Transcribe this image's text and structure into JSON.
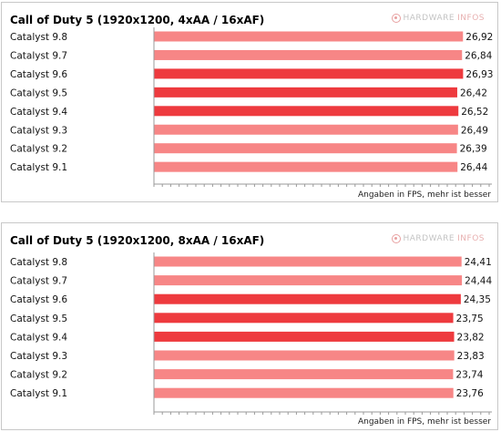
{
  "colors": {
    "light": "#f78686",
    "dark": "#ee3a3e",
    "axis": "#9a9a9a"
  },
  "logo": {
    "icon": "hardware-infos-logo-icon",
    "word_a": "HARDWARE",
    "word_b": "INFOS"
  },
  "chart_data": [
    {
      "type": "bar",
      "orientation": "horizontal",
      "title": "Call of Duty 5 (1920x1200, 4xAA / 16xAF)",
      "note": "Angaben in FPS, mehr ist besser",
      "categories": [
        "Catalyst 9.8",
        "Catalyst 9.7",
        "Catalyst 9.6",
        "Catalyst 9.5",
        "Catalyst 9.4",
        "Catalyst 9.3",
        "Catalyst 9.2",
        "Catalyst 9.1"
      ],
      "values": [
        26.92,
        26.84,
        26.93,
        26.42,
        26.52,
        26.49,
        26.39,
        26.44
      ],
      "value_labels": [
        "26,92",
        "26,84",
        "26,93",
        "26,42",
        "26,52",
        "26,49",
        "26,39",
        "26,44"
      ],
      "highlight": [
        false,
        false,
        true,
        true,
        true,
        false,
        false,
        false
      ],
      "xlim": [
        0,
        29.2
      ],
      "grid": false
    },
    {
      "type": "bar",
      "orientation": "horizontal",
      "title": "Call of Duty 5 (1920x1200, 8xAA / 16xAF)",
      "note": "Angaben in FPS, mehr ist besser",
      "categories": [
        "Catalyst 9.8",
        "Catalyst 9.7",
        "Catalyst 9.6",
        "Catalyst 9.5",
        "Catalyst 9.4",
        "Catalyst 9.3",
        "Catalyst 9.2",
        "Catalyst 9.1"
      ],
      "values": [
        24.41,
        24.44,
        24.35,
        23.75,
        23.82,
        23.83,
        23.74,
        23.76
      ],
      "value_labels": [
        "24,41",
        "24,44",
        "24,35",
        "23,75",
        "23,82",
        "23,83",
        "23,74",
        "23,76"
      ],
      "highlight": [
        false,
        false,
        true,
        true,
        true,
        false,
        false,
        false
      ],
      "xlim": [
        0,
        26.6
      ],
      "grid": false
    }
  ]
}
